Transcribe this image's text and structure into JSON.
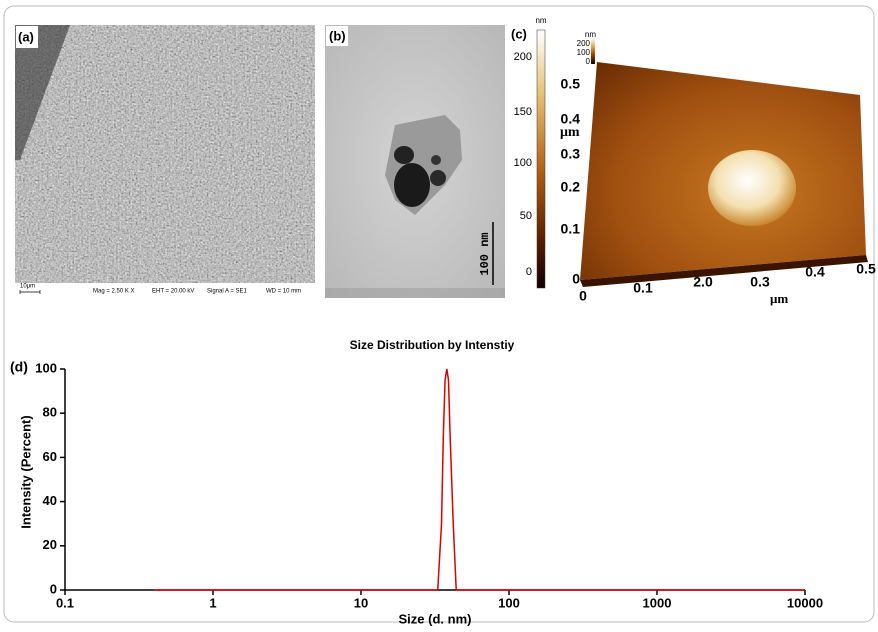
{
  "panels": {
    "a": {
      "label": "(a)",
      "scale_bar": "10μm",
      "info": [
        "Mag =  2.50 K X",
        "EHT = 20.00 kV",
        "Signal A = SE1",
        "WD =  10 mm"
      ]
    },
    "b": {
      "label": "(b)",
      "scale_bar": "100 nm"
    },
    "c": {
      "label": "(c)",
      "colorbar_unit": "nm",
      "colorbar_ticks": [
        "200",
        "150",
        "100",
        "50",
        "0"
      ],
      "unit_label": "μm",
      "mini_colorbar": [
        "nm",
        "200",
        "100",
        "0"
      ],
      "z_ticks": [
        "0.5",
        "0.4",
        "0.3",
        "0.2",
        "0.1",
        "0"
      ],
      "x_ticks": [
        "0",
        "0.1",
        "2.0",
        "0.3",
        "0.4",
        "0.5"
      ],
      "x_unit": "μm"
    }
  },
  "chart_data": {
    "type": "line",
    "label": "(d)",
    "title": "Size Distribution by Intenstiy",
    "x_label": "Size (d. nm)",
    "y_label": "Intensity (Percent)",
    "x": [
      0.4,
      33,
      35,
      36,
      37,
      38,
      39,
      40,
      42,
      44,
      10000
    ],
    "values": [
      0,
      0,
      30,
      70,
      95,
      100,
      95,
      70,
      30,
      0,
      0
    ],
    "color": "#e00000",
    "x_log": true,
    "xlim": [
      0.1,
      10000
    ],
    "xticks": [
      0.1,
      1,
      10,
      100,
      1000,
      10000
    ],
    "ylim": [
      0,
      100
    ],
    "yticks": [
      0,
      20,
      40,
      60,
      80,
      100
    ]
  }
}
